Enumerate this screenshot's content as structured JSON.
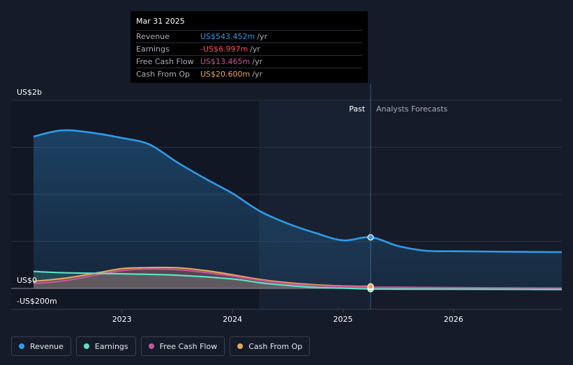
{
  "tooltip": {
    "date": "Mar 31 2025",
    "rows": [
      {
        "label": "Revenue",
        "value": "US$543.452m",
        "unit": "/yr",
        "color": "#2f9be8"
      },
      {
        "label": "Earnings",
        "value": "-US$6.997m",
        "unit": "/yr",
        "color": "#ff4d5e"
      },
      {
        "label": "Free Cash Flow",
        "value": "US$13.465m",
        "unit": "/yr",
        "color": "#c9549a"
      },
      {
        "label": "Cash From Op",
        "value": "US$20.600m",
        "unit": "/yr",
        "color": "#e8a65a"
      }
    ]
  },
  "legend": [
    {
      "label": "Revenue",
      "color": "#2f9be8"
    },
    {
      "label": "Earnings",
      "color": "#5fe0c4"
    },
    {
      "label": "Free Cash Flow",
      "color": "#c9549a"
    },
    {
      "label": "Cash From Op",
      "color": "#e8a65a"
    }
  ],
  "chart_data": {
    "type": "area",
    "y_axis_labels": [
      "US$2b",
      "US$0",
      "-US$200m"
    ],
    "x_tick_labels": [
      "2023",
      "2024",
      "2025",
      "2026"
    ],
    "past_label": "Past",
    "forecast_label": "Analysts Forecasts",
    "x_range": [
      2022.2,
      2026.98
    ],
    "ylim": [
      -200,
      2000
    ],
    "past_shade_start": 2024.24,
    "past_end": 2025.25,
    "series": [
      {
        "name": "Revenue",
        "color": "#2f9be8",
        "x": [
          2022.2,
          2022.45,
          2022.7,
          2023.0,
          2023.25,
          2023.5,
          2023.75,
          2024.0,
          2024.25,
          2024.5,
          2024.75,
          2025.0,
          2025.25,
          2025.5,
          2025.75,
          2026.0,
          2026.5,
          2026.98
        ],
        "y": [
          1615,
          1680,
          1660,
          1600,
          1530,
          1340,
          1170,
          1010,
          820,
          690,
          590,
          510,
          543,
          450,
          400,
          395,
          390,
          385
        ]
      },
      {
        "name": "Earnings",
        "color": "#5fe0c4",
        "x": [
          2022.2,
          2022.5,
          2023.0,
          2023.5,
          2024.0,
          2024.25,
          2024.5,
          2024.75,
          2025.0,
          2025.25,
          2025.5,
          2026.0,
          2026.5,
          2026.98
        ],
        "y": [
          180,
          165,
          155,
          140,
          100,
          60,
          30,
          10,
          2,
          -7,
          -8,
          -9,
          -10,
          -12
        ]
      },
      {
        "name": "Free Cash Flow",
        "color": "#c9549a",
        "x": [
          2022.2,
          2022.5,
          2022.8,
          2023.0,
          2023.2,
          2023.5,
          2023.75,
          2024.0,
          2024.25,
          2024.5,
          2024.75,
          2025.0,
          2025.25,
          2025.5,
          2026.0,
          2026.5,
          2026.98
        ],
        "y": [
          50,
          85,
          150,
          190,
          205,
          200,
          170,
          130,
          85,
          50,
          30,
          20,
          13,
          12,
          8,
          5,
          3
        ]
      },
      {
        "name": "Cash From Op",
        "color": "#e8a65a",
        "x": [
          2022.2,
          2022.5,
          2022.8,
          2023.0,
          2023.2,
          2023.5,
          2023.75,
          2024.0,
          2024.25,
          2024.5,
          2024.75,
          2025.0,
          2025.25
        ],
        "y": [
          75,
          110,
          170,
          210,
          220,
          220,
          190,
          145,
          95,
          60,
          38,
          25,
          20.6
        ]
      }
    ],
    "grid": true
  }
}
